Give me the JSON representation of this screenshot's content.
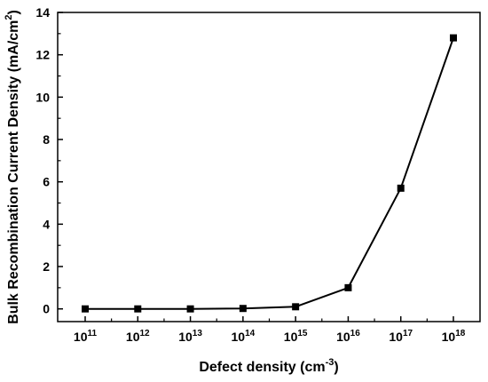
{
  "chart_data": {
    "type": "line",
    "title": "",
    "xlabel": "Defect density (cm",
    "xlabel_sup": "-3",
    "xlabel_end": ")",
    "ylabel": "Bulk Recombination Current Density (mA/cm",
    "ylabel_sup": "2",
    "ylabel_end": ")",
    "x_scale": "log",
    "x_tick_base": "10",
    "x_tick_exponents": [
      "11",
      "12",
      "13",
      "14",
      "15",
      "16",
      "17",
      "18"
    ],
    "y_ticks": [
      "0",
      "2",
      "4",
      "6",
      "8",
      "10",
      "12",
      "14"
    ],
    "ylim": [
      -0.6,
      14
    ],
    "grid": false,
    "series": [
      {
        "x": [
          100000000000.0,
          1000000000000.0,
          10000000000000.0,
          100000000000000.0,
          1000000000000000.0,
          1e+16,
          1e+17,
          1e+18
        ],
        "y": [
          0,
          0,
          0,
          0.02,
          0.1,
          1.0,
          5.7,
          12.8
        ],
        "marker": "square",
        "color": "#000000"
      }
    ]
  }
}
